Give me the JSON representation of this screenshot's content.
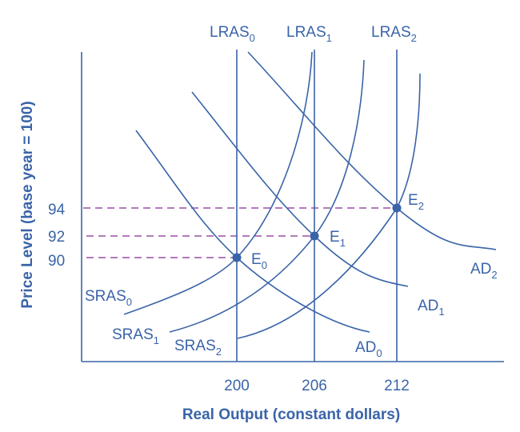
{
  "colors": {
    "curves": "#3a64a8",
    "dashed": "#9b4fa8"
  },
  "axes": {
    "xlabel": "Real Output (constant dollars)",
    "ylabel": "Price Level (base  year = 100)"
  },
  "x_ticks": [
    "200",
    "206",
    "212"
  ],
  "y_ticks": [
    "94",
    "92",
    "90"
  ],
  "lras": [
    {
      "base": "LRAS",
      "sub": "0"
    },
    {
      "base": "LRAS",
      "sub": "1"
    },
    {
      "base": "LRAS",
      "sub": "2"
    }
  ],
  "sras": [
    {
      "base": "SRAS",
      "sub": "0"
    },
    {
      "base": "SRAS",
      "sub": "1"
    },
    {
      "base": "SRAS",
      "sub": "2"
    }
  ],
  "ad": [
    {
      "base": "AD",
      "sub": "0"
    },
    {
      "base": "AD",
      "sub": "1"
    },
    {
      "base": "AD",
      "sub": "2"
    }
  ],
  "equilibria": [
    {
      "base": "E",
      "sub": "0",
      "output": 200,
      "price": 90
    },
    {
      "base": "E",
      "sub": "1",
      "output": 206,
      "price": 92
    },
    {
      "base": "E",
      "sub": "2",
      "output": 212,
      "price": 94
    }
  ]
}
